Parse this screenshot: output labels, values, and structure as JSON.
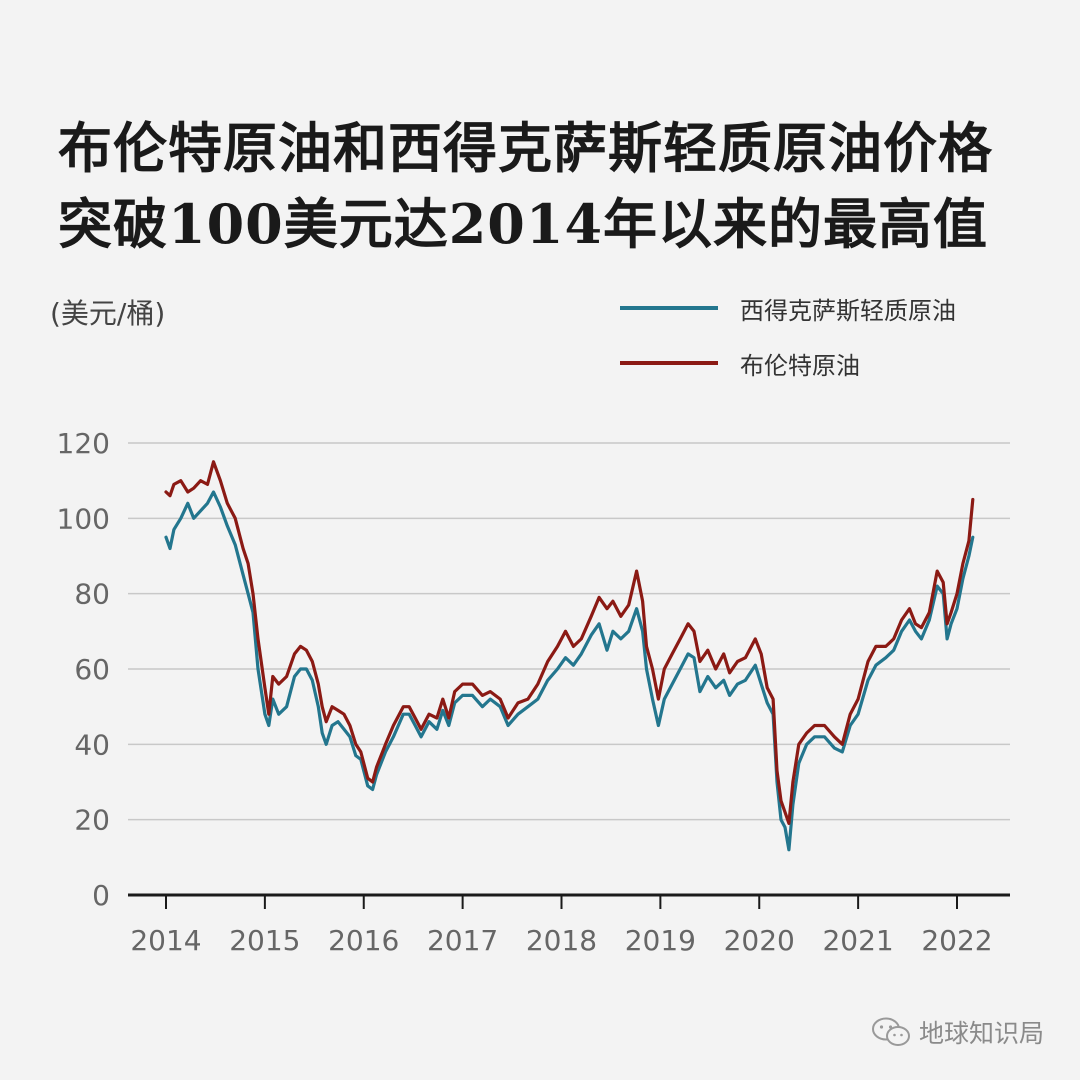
{
  "title_lines": [
    "布伦特原油和西得克萨斯轻质原油价格",
    "突破100美元达2014年以来的最高值"
  ],
  "unit_label": "(美元/桶)",
  "watermark": "地球知识局",
  "chart_data": {
    "type": "line",
    "title": "布伦特原油和西得克萨斯轻质原油价格突破100美元达2014年以来的最高值",
    "ylabel": "(美元/桶)",
    "xlim": [
      2014,
      2022.25
    ],
    "ylim": [
      0,
      120
    ],
    "y_ticks": [
      0,
      20,
      40,
      60,
      80,
      100,
      120
    ],
    "x_ticks": [
      "2014",
      "2015",
      "2016",
      "2017",
      "2018",
      "2019",
      "2020",
      "2021",
      "2022"
    ],
    "grid": true,
    "legend_position": "top-right",
    "series": [
      {
        "name": "西得克萨斯轻质原油",
        "color": "#23768e",
        "points": [
          [
            2014.0,
            95
          ],
          [
            2014.04,
            92
          ],
          [
            2014.08,
            97
          ],
          [
            2014.15,
            100
          ],
          [
            2014.22,
            104
          ],
          [
            2014.28,
            100
          ],
          [
            2014.35,
            102
          ],
          [
            2014.42,
            104
          ],
          [
            2014.48,
            107
          ],
          [
            2014.55,
            103
          ],
          [
            2014.62,
            98
          ],
          [
            2014.7,
            93
          ],
          [
            2014.78,
            85
          ],
          [
            2014.83,
            80
          ],
          [
            2014.88,
            75
          ],
          [
            2014.93,
            60
          ],
          [
            2015.0,
            48
          ],
          [
            2015.04,
            45
          ],
          [
            2015.08,
            52
          ],
          [
            2015.14,
            48
          ],
          [
            2015.22,
            50
          ],
          [
            2015.3,
            58
          ],
          [
            2015.36,
            60
          ],
          [
            2015.42,
            60
          ],
          [
            2015.48,
            57
          ],
          [
            2015.54,
            50
          ],
          [
            2015.58,
            43
          ],
          [
            2015.62,
            40
          ],
          [
            2015.68,
            45
          ],
          [
            2015.74,
            46
          ],
          [
            2015.8,
            44
          ],
          [
            2015.86,
            42
          ],
          [
            2015.92,
            37
          ],
          [
            2015.97,
            36
          ],
          [
            2016.04,
            29
          ],
          [
            2016.09,
            28
          ],
          [
            2016.13,
            32
          ],
          [
            2016.22,
            38
          ],
          [
            2016.3,
            42
          ],
          [
            2016.4,
            48
          ],
          [
            2016.46,
            48
          ],
          [
            2016.52,
            45
          ],
          [
            2016.58,
            42
          ],
          [
            2016.66,
            46
          ],
          [
            2016.74,
            44
          ],
          [
            2016.8,
            49
          ],
          [
            2016.86,
            45
          ],
          [
            2016.92,
            51
          ],
          [
            2017.0,
            53
          ],
          [
            2017.1,
            53
          ],
          [
            2017.2,
            50
          ],
          [
            2017.28,
            52
          ],
          [
            2017.38,
            50
          ],
          [
            2017.46,
            45
          ],
          [
            2017.56,
            48
          ],
          [
            2017.66,
            50
          ],
          [
            2017.76,
            52
          ],
          [
            2017.86,
            57
          ],
          [
            2017.96,
            60
          ],
          [
            2018.04,
            63
          ],
          [
            2018.12,
            61
          ],
          [
            2018.2,
            64
          ],
          [
            2018.3,
            69
          ],
          [
            2018.38,
            72
          ],
          [
            2018.46,
            65
          ],
          [
            2018.52,
            70
          ],
          [
            2018.6,
            68
          ],
          [
            2018.68,
            70
          ],
          [
            2018.76,
            76
          ],
          [
            2018.82,
            70
          ],
          [
            2018.86,
            60
          ],
          [
            2018.92,
            52
          ],
          [
            2018.98,
            45
          ],
          [
            2019.04,
            52
          ],
          [
            2019.12,
            56
          ],
          [
            2019.2,
            60
          ],
          [
            2019.28,
            64
          ],
          [
            2019.34,
            63
          ],
          [
            2019.4,
            54
          ],
          [
            2019.48,
            58
          ],
          [
            2019.56,
            55
          ],
          [
            2019.64,
            57
          ],
          [
            2019.7,
            53
          ],
          [
            2019.78,
            56
          ],
          [
            2019.86,
            57
          ],
          [
            2019.96,
            61
          ],
          [
            2020.02,
            56
          ],
          [
            2020.08,
            51
          ],
          [
            2020.14,
            48
          ],
          [
            2020.18,
            30
          ],
          [
            2020.22,
            20
          ],
          [
            2020.26,
            18
          ],
          [
            2020.3,
            12
          ],
          [
            2020.34,
            24
          ],
          [
            2020.4,
            35
          ],
          [
            2020.48,
            40
          ],
          [
            2020.56,
            42
          ],
          [
            2020.66,
            42
          ],
          [
            2020.76,
            39
          ],
          [
            2020.84,
            38
          ],
          [
            2020.92,
            45
          ],
          [
            2021.0,
            48
          ],
          [
            2021.1,
            57
          ],
          [
            2021.18,
            61
          ],
          [
            2021.28,
            63
          ],
          [
            2021.36,
            65
          ],
          [
            2021.44,
            70
          ],
          [
            2021.52,
            73
          ],
          [
            2021.58,
            70
          ],
          [
            2021.64,
            68
          ],
          [
            2021.72,
            73
          ],
          [
            2021.8,
            82
          ],
          [
            2021.86,
            80
          ],
          [
            2021.9,
            68
          ],
          [
            2021.94,
            72
          ],
          [
            2022.0,
            76
          ],
          [
            2022.06,
            84
          ],
          [
            2022.12,
            90
          ],
          [
            2022.16,
            95
          ]
        ]
      },
      {
        "name": "布伦特原油",
        "color": "#8b1a14",
        "points": [
          [
            2014.0,
            107
          ],
          [
            2014.04,
            106
          ],
          [
            2014.08,
            109
          ],
          [
            2014.15,
            110
          ],
          [
            2014.22,
            107
          ],
          [
            2014.28,
            108
          ],
          [
            2014.35,
            110
          ],
          [
            2014.42,
            109
          ],
          [
            2014.48,
            115
          ],
          [
            2014.55,
            110
          ],
          [
            2014.62,
            104
          ],
          [
            2014.7,
            100
          ],
          [
            2014.78,
            92
          ],
          [
            2014.83,
            88
          ],
          [
            2014.88,
            80
          ],
          [
            2014.93,
            68
          ],
          [
            2015.0,
            55
          ],
          [
            2015.04,
            48
          ],
          [
            2015.08,
            58
          ],
          [
            2015.14,
            56
          ],
          [
            2015.22,
            58
          ],
          [
            2015.3,
            64
          ],
          [
            2015.36,
            66
          ],
          [
            2015.42,
            65
          ],
          [
            2015.48,
            62
          ],
          [
            2015.54,
            56
          ],
          [
            2015.58,
            50
          ],
          [
            2015.62,
            46
          ],
          [
            2015.68,
            50
          ],
          [
            2015.74,
            49
          ],
          [
            2015.8,
            48
          ],
          [
            2015.86,
            45
          ],
          [
            2015.92,
            40
          ],
          [
            2015.97,
            38
          ],
          [
            2016.04,
            31
          ],
          [
            2016.09,
            30
          ],
          [
            2016.13,
            34
          ],
          [
            2016.22,
            40
          ],
          [
            2016.3,
            45
          ],
          [
            2016.4,
            50
          ],
          [
            2016.46,
            50
          ],
          [
            2016.52,
            47
          ],
          [
            2016.58,
            44
          ],
          [
            2016.66,
            48
          ],
          [
            2016.74,
            47
          ],
          [
            2016.8,
            52
          ],
          [
            2016.86,
            47
          ],
          [
            2016.92,
            54
          ],
          [
            2017.0,
            56
          ],
          [
            2017.1,
            56
          ],
          [
            2017.2,
            53
          ],
          [
            2017.28,
            54
          ],
          [
            2017.38,
            52
          ],
          [
            2017.46,
            47
          ],
          [
            2017.56,
            51
          ],
          [
            2017.66,
            52
          ],
          [
            2017.76,
            56
          ],
          [
            2017.86,
            62
          ],
          [
            2017.96,
            66
          ],
          [
            2018.04,
            70
          ],
          [
            2018.12,
            66
          ],
          [
            2018.2,
            68
          ],
          [
            2018.3,
            74
          ],
          [
            2018.38,
            79
          ],
          [
            2018.46,
            76
          ],
          [
            2018.52,
            78
          ],
          [
            2018.6,
            74
          ],
          [
            2018.68,
            77
          ],
          [
            2018.76,
            86
          ],
          [
            2018.82,
            78
          ],
          [
            2018.86,
            66
          ],
          [
            2018.92,
            60
          ],
          [
            2018.98,
            52
          ],
          [
            2019.04,
            60
          ],
          [
            2019.12,
            64
          ],
          [
            2019.2,
            68
          ],
          [
            2019.28,
            72
          ],
          [
            2019.34,
            70
          ],
          [
            2019.4,
            62
          ],
          [
            2019.48,
            65
          ],
          [
            2019.56,
            60
          ],
          [
            2019.64,
            64
          ],
          [
            2019.7,
            59
          ],
          [
            2019.78,
            62
          ],
          [
            2019.86,
            63
          ],
          [
            2019.96,
            68
          ],
          [
            2020.02,
            64
          ],
          [
            2020.08,
            55
          ],
          [
            2020.14,
            52
          ],
          [
            2020.18,
            33
          ],
          [
            2020.22,
            25
          ],
          [
            2020.26,
            22
          ],
          [
            2020.3,
            19
          ],
          [
            2020.34,
            30
          ],
          [
            2020.4,
            40
          ],
          [
            2020.48,
            43
          ],
          [
            2020.56,
            45
          ],
          [
            2020.66,
            45
          ],
          [
            2020.76,
            42
          ],
          [
            2020.84,
            40
          ],
          [
            2020.92,
            48
          ],
          [
            2021.0,
            52
          ],
          [
            2021.1,
            62
          ],
          [
            2021.18,
            66
          ],
          [
            2021.28,
            66
          ],
          [
            2021.36,
            68
          ],
          [
            2021.44,
            73
          ],
          [
            2021.52,
            76
          ],
          [
            2021.58,
            72
          ],
          [
            2021.64,
            71
          ],
          [
            2021.72,
            75
          ],
          [
            2021.8,
            86
          ],
          [
            2021.86,
            83
          ],
          [
            2021.9,
            72
          ],
          [
            2021.94,
            75
          ],
          [
            2022.0,
            80
          ],
          [
            2022.06,
            88
          ],
          [
            2022.12,
            94
          ],
          [
            2022.16,
            105
          ]
        ]
      }
    ]
  }
}
